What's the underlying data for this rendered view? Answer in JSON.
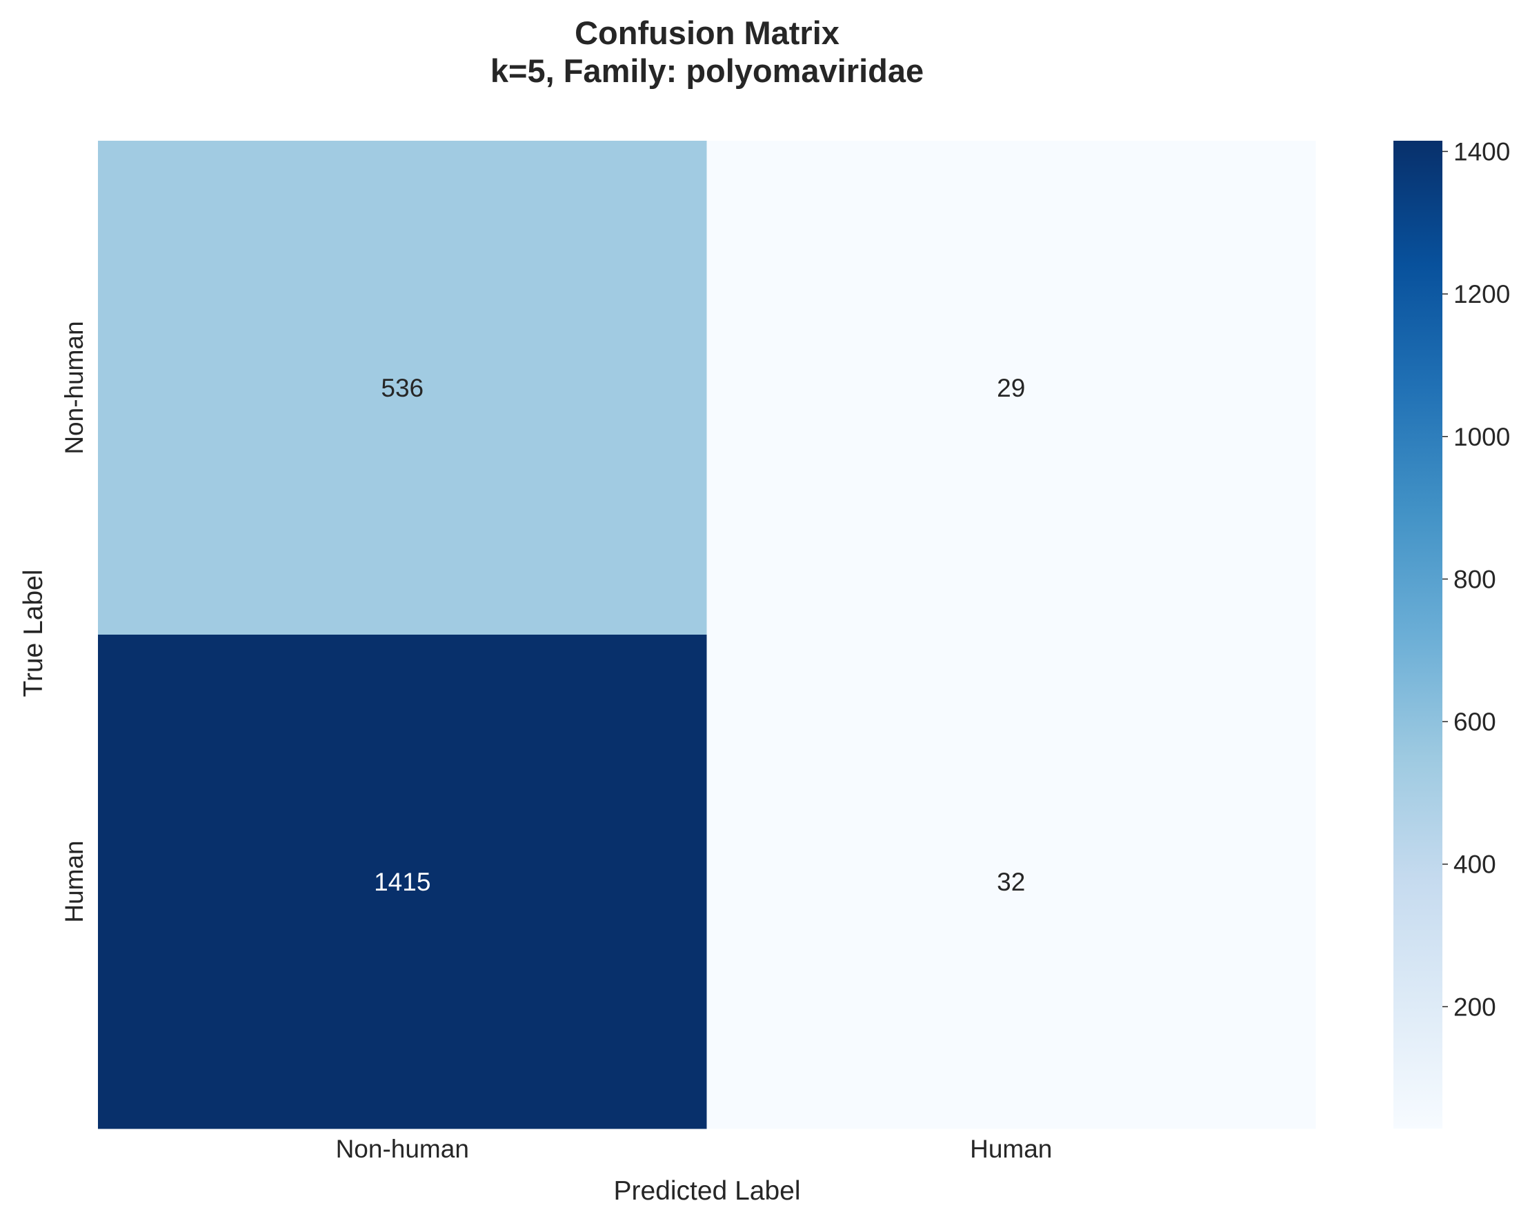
{
  "chart_data": {
    "type": "heatmap",
    "title": "Confusion Matrix",
    "subtitle": "k=5, Family: polyomaviridae",
    "xlabel": "Predicted Label",
    "ylabel": "True Label",
    "x_categories": [
      "Non-human",
      "Human"
    ],
    "y_categories": [
      "Non-human",
      "Human"
    ],
    "values": [
      [
        536,
        29
      ],
      [
        1415,
        32
      ]
    ],
    "colormap": "Blues",
    "color_range": [
      29,
      1415
    ],
    "colorbar": {
      "ticks": [
        200,
        400,
        600,
        800,
        1000,
        1200,
        1400
      ],
      "tick_labels": [
        "200",
        "400",
        "600",
        "800",
        "1000",
        "1200",
        "1400"
      ]
    },
    "grid": false,
    "legend": "colorbar-right"
  }
}
